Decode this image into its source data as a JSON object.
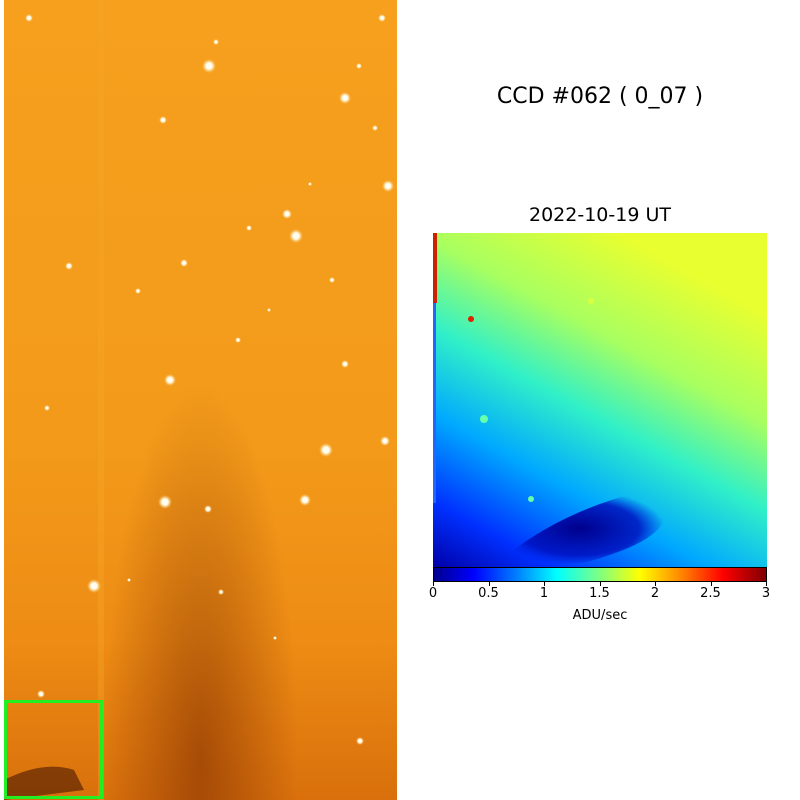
{
  "ccd_title": "CCD #062 ( 0_07 )",
  "zoom_title": "2022-10-19 UT",
  "colorbar": {
    "label": "ADU/sec",
    "min": 0,
    "max": 3,
    "ticks": [
      "0",
      "0.5",
      "1",
      "1.5",
      "2",
      "2.5",
      "3"
    ],
    "colormap": "jet"
  },
  "highlight_box_color": "#22ee22"
}
